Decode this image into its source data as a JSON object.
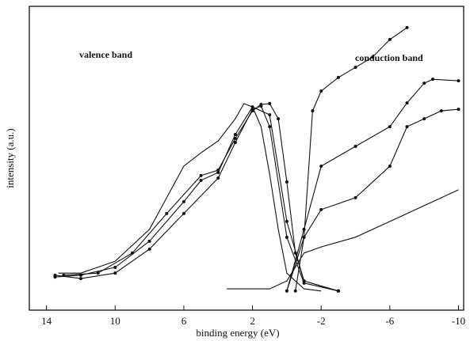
{
  "chart_data": {
    "type": "line",
    "x_label": "binding energy (eV)",
    "y_label": "intensity (a.u.)",
    "annotations": [
      "valence band",
      "conduction band"
    ],
    "xlim": [
      15,
      -10.3
    ],
    "xticks": [
      14,
      10,
      6,
      2,
      -2,
      -6,
      -10
    ],
    "ylim": [
      0,
      100
    ],
    "series": [
      {
        "color": "#111",
        "marker": false,
        "x": [
          13.3,
          12,
          10,
          8,
          7,
          6,
          5,
          4,
          3,
          2.5,
          2,
          1.5,
          1,
          0.5,
          0,
          -1,
          -2
        ],
        "values": [
          12.2,
          12.2,
          16.1,
          26.6,
          37,
          47.4,
          51.8,
          55.7,
          63,
          68,
          66.9,
          60.4,
          44.8,
          26.6,
          12.2,
          7,
          6.3
        ]
      },
      {
        "color": "#111",
        "marker": true,
        "x": [
          13,
          11,
          9,
          7,
          5,
          4,
          3,
          2,
          1.5,
          1,
          0.5,
          0,
          -0.5,
          -1,
          -3
        ],
        "values": [
          11.5,
          12.2,
          18.8,
          31.8,
          44.3,
          46.1,
          56.5,
          65.6,
          67.7,
          68,
          63,
          42.2,
          18.8,
          9.6,
          6.3
        ]
      },
      {
        "color": "#111",
        "marker": true,
        "x": [
          13.5,
          12,
          10,
          8,
          6,
          5,
          4,
          3,
          2,
          1,
          0,
          -1,
          -3
        ],
        "values": [
          10.9,
          11.5,
          14.1,
          22.7,
          35.7,
          42.7,
          45.3,
          57.8,
          66.9,
          64.3,
          29.2,
          9.6,
          6.3
        ]
      },
      {
        "color": "#111",
        "marker": true,
        "x": [
          13.5,
          12,
          10,
          8,
          6,
          4,
          3,
          2,
          1.5,
          1,
          0,
          -1,
          -3
        ],
        "values": [
          11.5,
          10.4,
          12.2,
          20.1,
          31.8,
          43.5,
          55.2,
          66.1,
          67.2,
          60.4,
          24,
          8.9,
          6.3
        ]
      },
      {
        "color": "#111",
        "marker": false,
        "x": [
          3.5,
          1,
          0,
          -1,
          -2,
          -4,
          -6,
          -8,
          -10
        ],
        "values": [
          7,
          7,
          9.6,
          18.8,
          20.8,
          24,
          29.2,
          34.4,
          39.6
        ]
      },
      {
        "color": "#111",
        "marker": true,
        "x": [
          -0.5,
          -1,
          -1.5,
          -2,
          -3,
          -4,
          -5,
          -6,
          -7
        ],
        "values": [
          6.3,
          24,
          65.6,
          72.1,
          76.6,
          79.9,
          83.3,
          89.1,
          93
        ]
      },
      {
        "color": "#111",
        "marker": true,
        "x": [
          0,
          -1,
          -2,
          -4,
          -6,
          -7,
          -8,
          -8.5,
          -10
        ],
        "values": [
          6.3,
          26.6,
          47.4,
          53.9,
          60.4,
          68.2,
          74.7,
          76,
          75.5
        ]
      },
      {
        "color": "#111",
        "marker": true,
        "x": [
          0,
          -1,
          -2,
          -4,
          -6,
          -7,
          -8,
          -9,
          -10
        ],
        "values": [
          6.3,
          24,
          33.1,
          37,
          47.4,
          60.4,
          63,
          65.6,
          66.1
        ]
      }
    ]
  }
}
